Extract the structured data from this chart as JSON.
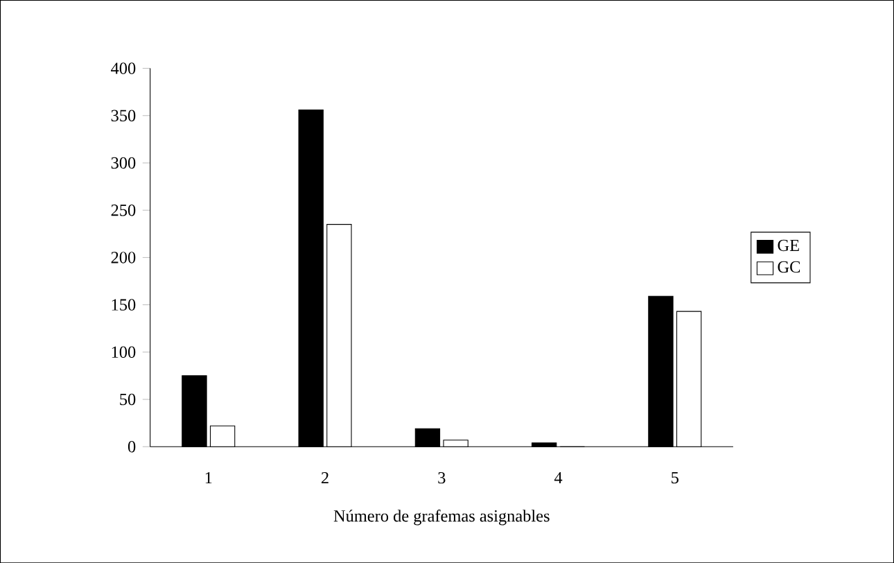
{
  "chart_data": {
    "type": "bar",
    "xlabel": "Número de grafemas asignables",
    "categories": [
      "1",
      "2",
      "3",
      "4",
      "5"
    ],
    "series": [
      {
        "name": "GE",
        "color": "#000000",
        "values": [
          75,
          356,
          19,
          4,
          159
        ]
      },
      {
        "name": "GC",
        "color": "#ffffff",
        "values": [
          22,
          235,
          7,
          0,
          143
        ]
      }
    ],
    "ylim": [
      0,
      400
    ],
    "yticks": [
      0,
      50,
      100,
      150,
      200,
      250,
      300,
      350,
      400
    ],
    "grid": false,
    "legend": "right"
  }
}
